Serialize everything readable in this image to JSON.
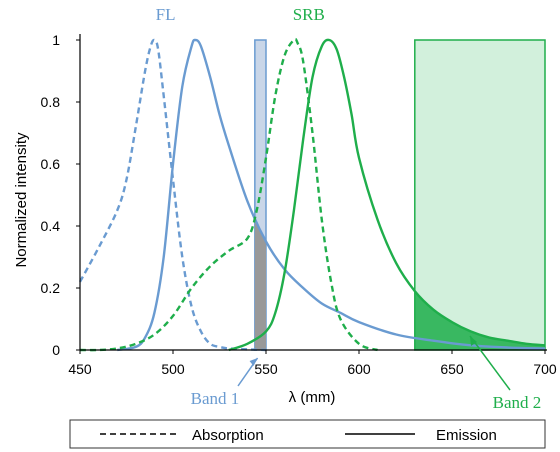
{
  "chart_data": {
    "type": "line",
    "xlabel": "λ (mm)",
    "ylabel": "Normalized intensity",
    "xlim": [
      450,
      700
    ],
    "ylim": [
      0,
      1.05
    ],
    "xticks": [
      "450",
      "500",
      "550",
      "600",
      "650",
      "700"
    ],
    "yticks": [
      "0",
      "0.2",
      "0.4",
      "0.6",
      "0.8",
      "1"
    ],
    "grid": false,
    "colors": {
      "fl": "#6a9bd1",
      "srb": "#1fae4b",
      "band1_fill": "#c9d6e8",
      "band1_overlap": "#999999",
      "band2_fill": "#d2f0dc"
    },
    "series": [
      {
        "dye": "FL",
        "kind": "absorption",
        "x": [
          450,
          460,
          470,
          475,
          480,
          485,
          488,
          490,
          492,
          495,
          500,
          505,
          510,
          515,
          520,
          525,
          530,
          540,
          550
        ],
        "y": [
          0.22,
          0.33,
          0.45,
          0.55,
          0.72,
          0.9,
          0.98,
          1.0,
          0.97,
          0.82,
          0.55,
          0.3,
          0.14,
          0.06,
          0.02,
          0.01,
          0.005,
          0.002,
          0
        ]
      },
      {
        "dye": "FL",
        "kind": "emission",
        "x": [
          470,
          480,
          485,
          490,
          495,
          500,
          505,
          510,
          512,
          515,
          520,
          525,
          530,
          540,
          550,
          560,
          570,
          580,
          590,
          600,
          620,
          640,
          660,
          680,
          700
        ],
        "y": [
          0,
          0.01,
          0.04,
          0.12,
          0.3,
          0.6,
          0.85,
          0.98,
          1.0,
          0.98,
          0.88,
          0.76,
          0.66,
          0.48,
          0.35,
          0.26,
          0.2,
          0.15,
          0.12,
          0.09,
          0.05,
          0.03,
          0.015,
          0.008,
          0.005
        ]
      },
      {
        "dye": "SRB",
        "kind": "absorption",
        "x": [
          450,
          460,
          470,
          480,
          490,
          500,
          510,
          520,
          530,
          540,
          545,
          550,
          555,
          560,
          565,
          567,
          570,
          575,
          580,
          585,
          590,
          600,
          610
        ],
        "y": [
          0,
          0,
          0.005,
          0.02,
          0.05,
          0.11,
          0.2,
          0.27,
          0.32,
          0.36,
          0.45,
          0.62,
          0.82,
          0.95,
          1.0,
          0.99,
          0.93,
          0.7,
          0.42,
          0.22,
          0.1,
          0.02,
          0
        ]
      },
      {
        "dye": "SRB",
        "kind": "emission",
        "x": [
          530,
          540,
          550,
          555,
          560,
          565,
          570,
          575,
          580,
          584,
          588,
          592,
          596,
          600,
          610,
          620,
          630,
          640,
          650,
          660,
          670,
          680,
          690,
          700
        ],
        "y": [
          0,
          0.02,
          0.06,
          0.12,
          0.25,
          0.45,
          0.68,
          0.88,
          0.98,
          1.0,
          0.97,
          0.88,
          0.76,
          0.62,
          0.42,
          0.28,
          0.19,
          0.13,
          0.09,
          0.06,
          0.04,
          0.03,
          0.02,
          0.015
        ]
      }
    ],
    "bands": [
      {
        "label": "Band 1",
        "x0": 544,
        "x1": 550,
        "y_top": 1.0
      },
      {
        "label": "Band 2",
        "x0": 630,
        "x1": 700,
        "y_top": 1.0
      }
    ],
    "dye_labels": [
      {
        "text": "FL",
        "x": 496,
        "y": 1.07
      },
      {
        "text": "SRB",
        "x": 573,
        "y": 1.07
      }
    ],
    "band_annotations": [
      {
        "text": "Band 1",
        "anchor_x": 546,
        "anchor_y": -0.03
      },
      {
        "text": "Band 2",
        "anchor_x": 650,
        "anchor_y": 0.05
      }
    ],
    "legend": {
      "placement": "bottom",
      "items": [
        "Absorption",
        "Emission"
      ]
    }
  }
}
